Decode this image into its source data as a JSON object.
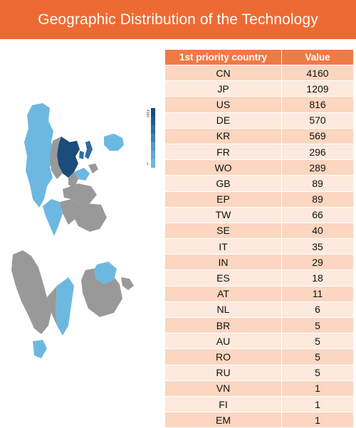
{
  "header": {
    "title": "Geographic Distribution of the Technology"
  },
  "colors": {
    "banner": "#ee6a33",
    "table_header": "#ee7a45",
    "row_dark": "#fbd6c0",
    "row_light": "#fde9dd",
    "map_no_data": "#999999",
    "map_low": "#6db8e1",
    "map_high": "#1b4c7a"
  },
  "legend": {
    "max_label": "4160",
    "min_label": "1"
  },
  "chart_data": {
    "type": "table",
    "columns": [
      "1st priority country",
      "Value"
    ],
    "rows": [
      [
        "CN",
        4160
      ],
      [
        "JP",
        1209
      ],
      [
        "US",
        816
      ],
      [
        "DE",
        570
      ],
      [
        "KR",
        569
      ],
      [
        "FR",
        296
      ],
      [
        "WO",
        289
      ],
      [
        "GB",
        89
      ],
      [
        "EP",
        89
      ],
      [
        "TW",
        66
      ],
      [
        "SE",
        40
      ],
      [
        "IT",
        35
      ],
      [
        "IN",
        29
      ],
      [
        "ES",
        18
      ],
      [
        "AT",
        11
      ],
      [
        "NL",
        6
      ],
      [
        "BR",
        5
      ],
      [
        "AU",
        5
      ],
      [
        "RO",
        5
      ],
      [
        "RU",
        5
      ],
      [
        "VN",
        1
      ],
      [
        "FI",
        1
      ],
      [
        "EM",
        1
      ]
    ]
  }
}
